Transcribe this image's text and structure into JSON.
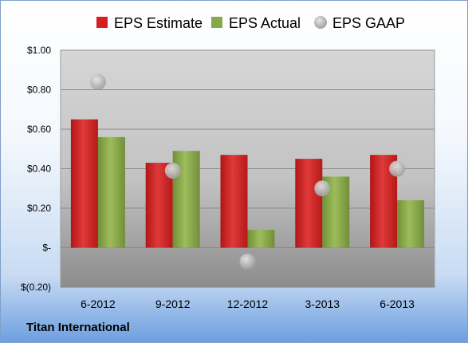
{
  "company": "Titan International",
  "chart_data": {
    "type": "bar",
    "categories": [
      "6-2012",
      "9-2012",
      "12-2012",
      "3-2013",
      "6-2013"
    ],
    "series": [
      {
        "name": "EPS Estimate",
        "kind": "bar",
        "color": "#d42020",
        "values": [
          0.65,
          0.43,
          0.47,
          0.45,
          0.47
        ]
      },
      {
        "name": "EPS Actual",
        "kind": "bar",
        "color": "#86a846",
        "values": [
          0.56,
          0.49,
          0.09,
          0.36,
          0.24
        ]
      },
      {
        "name": "EPS GAAP",
        "kind": "marker",
        "color": "#b0b0b0",
        "values": [
          0.84,
          0.39,
          -0.07,
          0.3,
          0.4
        ]
      }
    ],
    "ylim": [
      -0.2,
      1.0
    ],
    "yticks": [
      1.0,
      0.8,
      0.6,
      0.4,
      0.2,
      0,
      -0.2
    ],
    "ytick_labels": [
      "$1.00",
      "$0.80",
      "$0.60",
      "$0.40",
      "$0.20",
      "$-",
      "$(0.20)"
    ],
    "grid": true,
    "legend_position": "top"
  }
}
